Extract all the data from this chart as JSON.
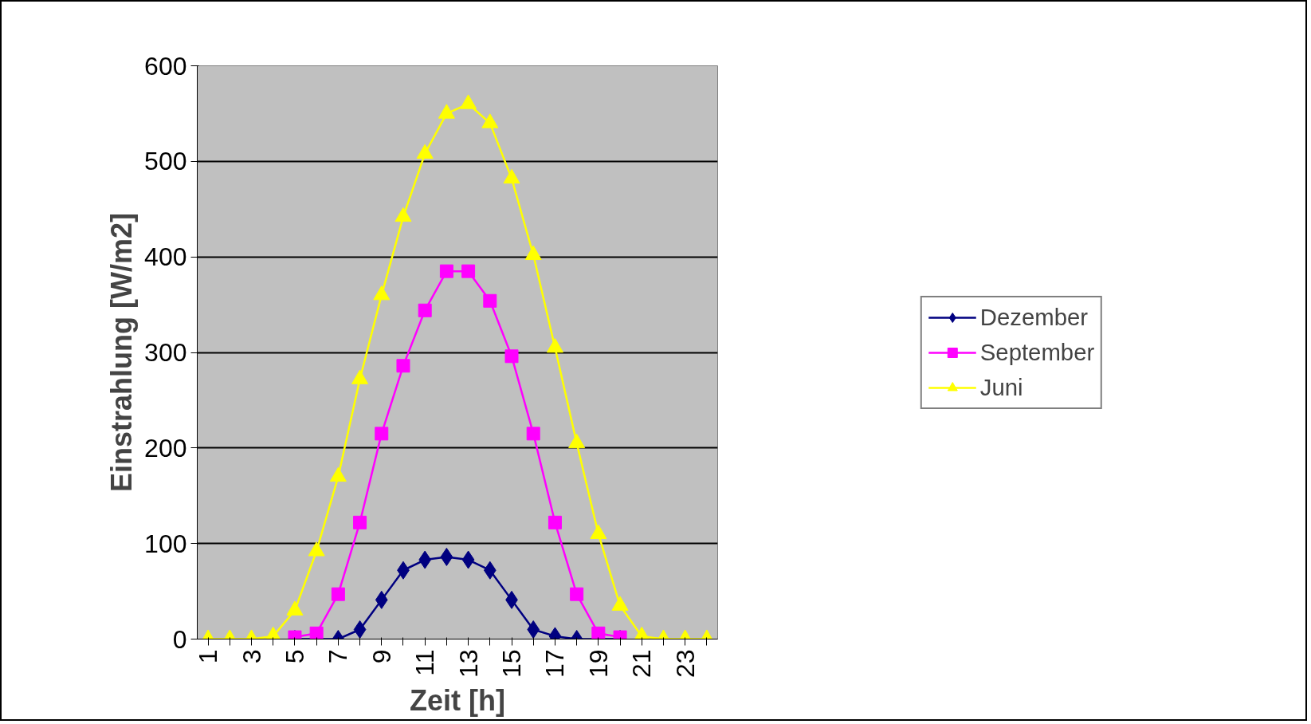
{
  "chart_data": {
    "type": "line",
    "xlabel": "Zeit [h]",
    "ylabel": "Einstrahlung [W/m2]",
    "categories": [
      "1",
      null,
      "3",
      null,
      "5",
      null,
      "7",
      null,
      "9",
      null,
      "11",
      null,
      "13",
      null,
      "15",
      null,
      "17",
      null,
      "19",
      null,
      "21",
      null,
      "23",
      null
    ],
    "series": [
      {
        "name": "Dezember",
        "color": "#000080",
        "marker": "diamond",
        "values": [
          null,
          null,
          null,
          null,
          0,
          0,
          0,
          10,
          41,
          72,
          83,
          86,
          83,
          72,
          41,
          10,
          3,
          0,
          0,
          0,
          null,
          null,
          null,
          null
        ]
      },
      {
        "name": "September",
        "color": "#ff00ff",
        "marker": "square",
        "values": [
          null,
          null,
          null,
          null,
          2,
          6,
          47,
          122,
          215,
          286,
          344,
          385,
          385,
          354,
          296,
          215,
          122,
          47,
          6,
          2,
          null,
          null,
          null,
          null
        ]
      },
      {
        "name": "Juni",
        "color": "#ffff00",
        "marker": "triangle",
        "values": [
          0,
          0,
          0,
          3,
          30,
          92,
          170,
          272,
          360,
          442,
          508,
          550,
          560,
          540,
          482,
          402,
          305,
          205,
          110,
          35,
          3,
          0,
          0,
          0
        ]
      }
    ],
    "ylim": [
      0,
      600
    ],
    "yticks": [
      0,
      100,
      200,
      300,
      400,
      500,
      600
    ],
    "grid": "y",
    "legend": "right",
    "line_style": "solid"
  }
}
